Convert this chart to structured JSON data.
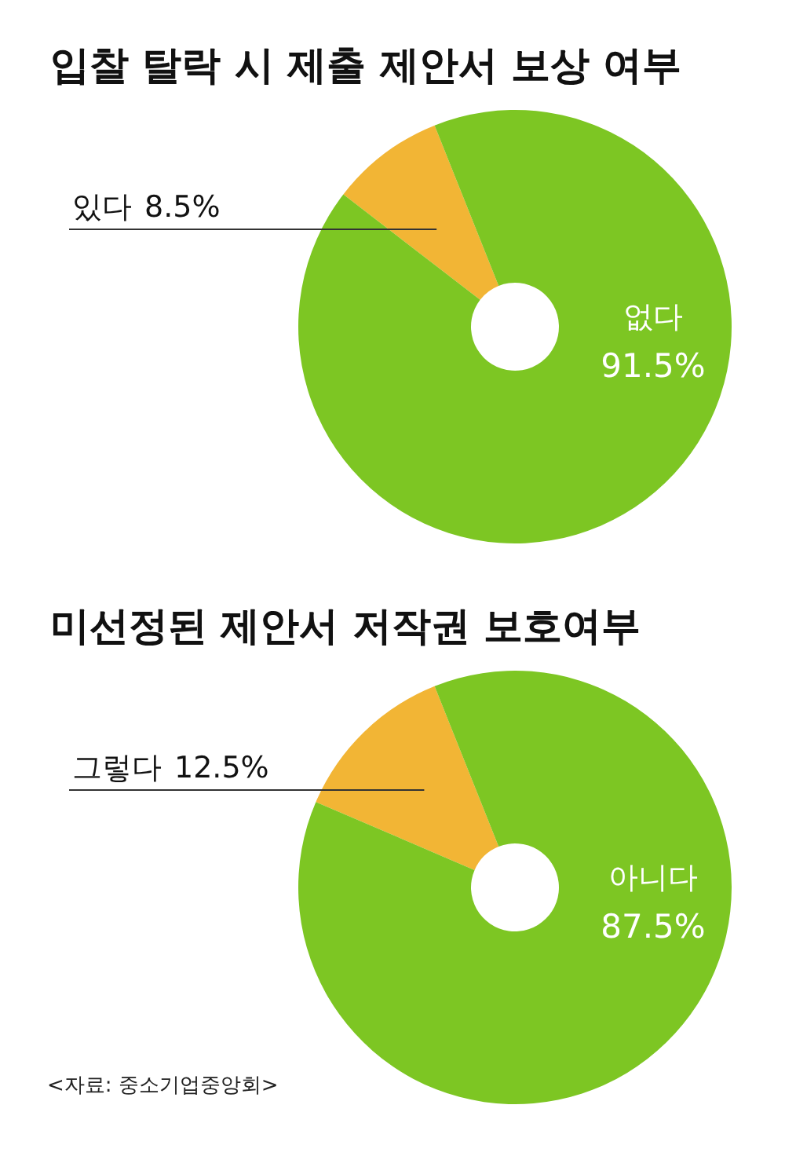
{
  "chart_data": [
    {
      "type": "donut",
      "title": "입찰 탈락 시 제출 제안서 보상 여부",
      "categories": [
        "있다",
        "없다"
      ],
      "values": [
        8.5,
        91.5
      ],
      "colors": [
        "#f2b535",
        "#7dc623"
      ],
      "value_labels": [
        "8.5%",
        "91.5%"
      ]
    },
    {
      "type": "donut",
      "title": "미선정된 제안서 저작권 보호여부",
      "categories": [
        "그렇다",
        "아니다"
      ],
      "values": [
        12.5,
        87.5
      ],
      "colors": [
        "#f2b535",
        "#7dc623"
      ],
      "value_labels": [
        "12.5%",
        "87.5%"
      ],
      "annotations": [
        "<자료: 중소기업중앙회>"
      ]
    }
  ]
}
